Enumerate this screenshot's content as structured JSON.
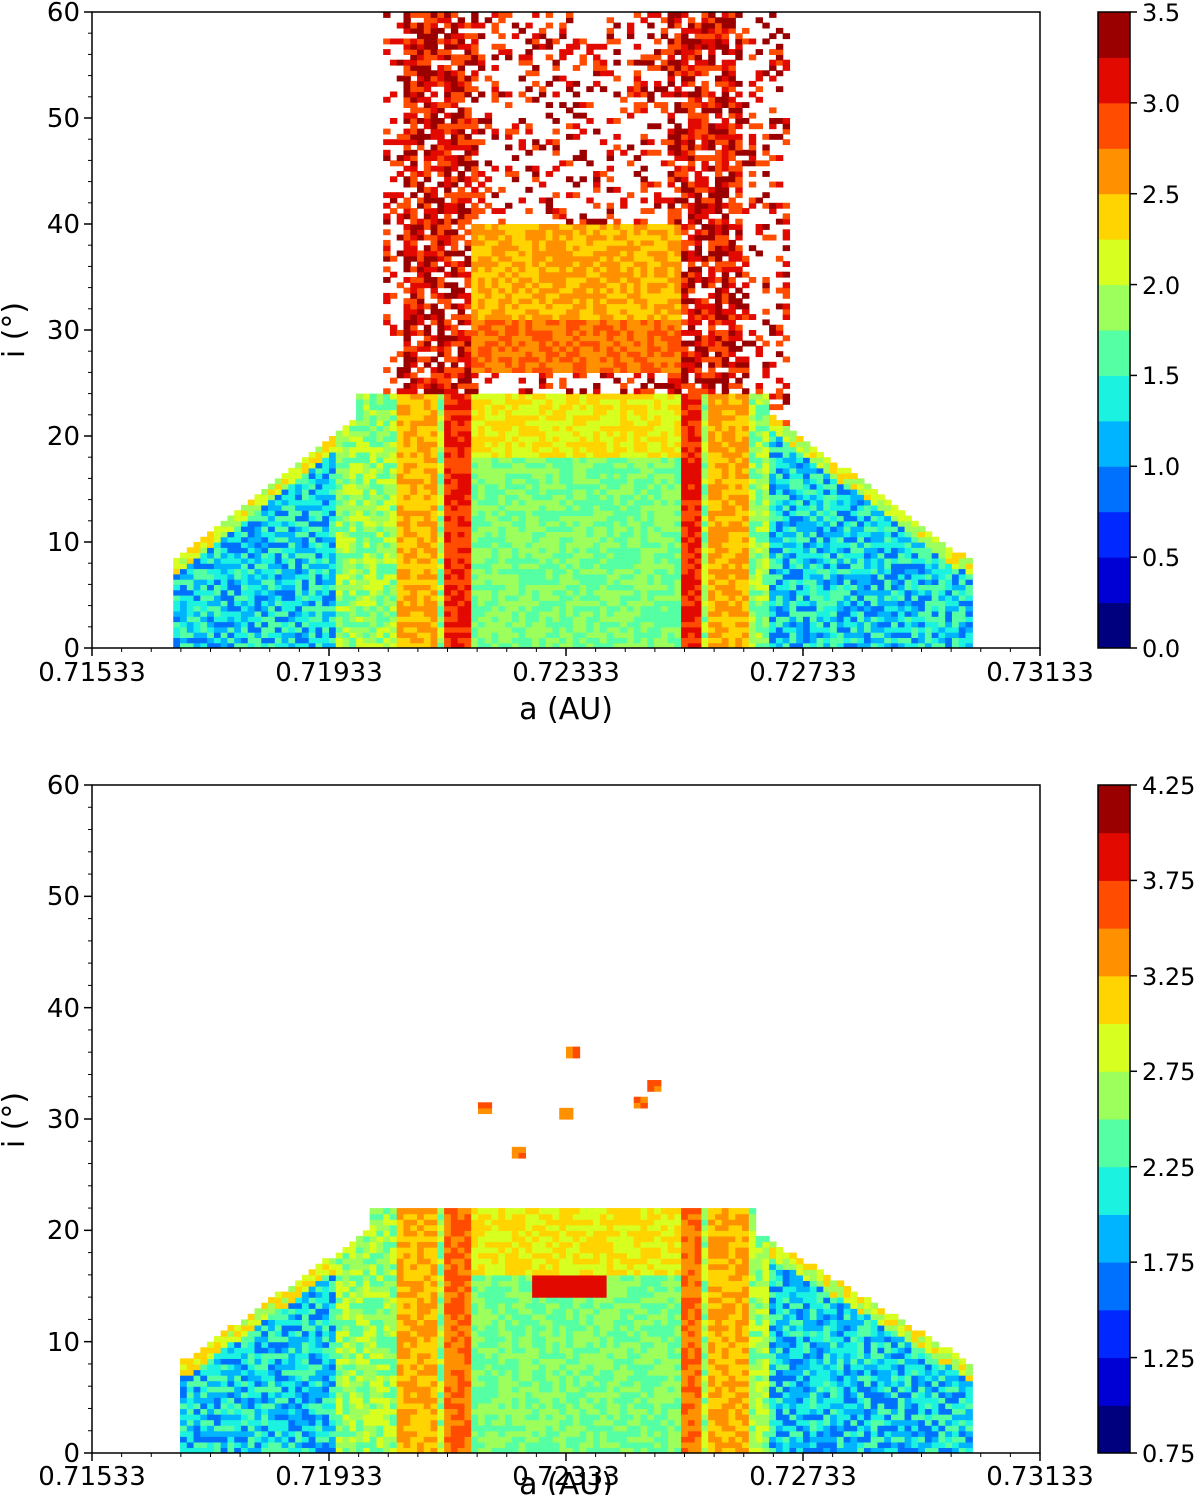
{
  "chart_data": [
    {
      "type": "heatmap",
      "title": "",
      "xlabel": "a (AU)",
      "ylabel": "i (°)",
      "xlim": [
        0.71533,
        0.73133
      ],
      "ylim": [
        0,
        60
      ],
      "x_ticks": [
        "0.71533",
        "0.71933",
        "0.72333",
        "0.72733",
        "0.73133"
      ],
      "y_ticks": [
        "0",
        "10",
        "20",
        "30",
        "40",
        "50",
        "60"
      ],
      "colorbar": {
        "vmin": 0.0,
        "vmax": 3.5,
        "levels": 14,
        "tick_labels": [
          "0.0",
          "0.5",
          "1.0",
          "1.5",
          "2.0",
          "2.5",
          "3.0",
          "3.5"
        ]
      },
      "regions": {
        "a_base_range": [
          0.7167,
          0.7302
        ],
        "base_top_i": 8,
        "trapezoid_top_i": 22,
        "trapezoid_top_a": [
          0.7198,
          0.7268
        ],
        "gap_a": [
          0.7215,
          0.7254
        ],
        "inner_upper_band_i": [
          26,
          40
        ],
        "sparse_scatter_i": [
          23,
          60
        ]
      }
    },
    {
      "type": "heatmap",
      "title": "",
      "xlabel": "a (AU)",
      "ylabel": "i (°)",
      "xlim": [
        0.71533,
        0.73133
      ],
      "ylim": [
        0,
        60
      ],
      "x_ticks": [
        "0.71533",
        "0.71933",
        "0.72333",
        "0.72733",
        "0.73133"
      ],
      "y_ticks": [
        "0",
        "10",
        "20",
        "30",
        "40",
        "50",
        "60"
      ],
      "colorbar": {
        "vmin": 0.75,
        "vmax": 4.25,
        "levels": 14,
        "tick_labels": [
          "0.75",
          "1.25",
          "1.75",
          "2.25",
          "2.75",
          "3.25",
          "3.75",
          "4.25"
        ]
      },
      "regions": {
        "a_base_range": [
          0.7168,
          0.7302
        ],
        "base_top_i": 8,
        "trapezoid_top_i": 20,
        "trapezoid_top_a": [
          0.72,
          0.7265
        ],
        "gap_a": [
          0.7215,
          0.7254
        ],
        "isolated_spots_i": [
          26,
          37
        ]
      }
    }
  ],
  "colormap": [
    "#00007f",
    "#0000d4",
    "#0028ff",
    "#0070ff",
    "#00b4ff",
    "#1cf2e0",
    "#55ffa3",
    "#9cff5c",
    "#d7ff1f",
    "#ffd400",
    "#ff9000",
    "#ff4c00",
    "#e20a00",
    "#9b0000"
  ]
}
